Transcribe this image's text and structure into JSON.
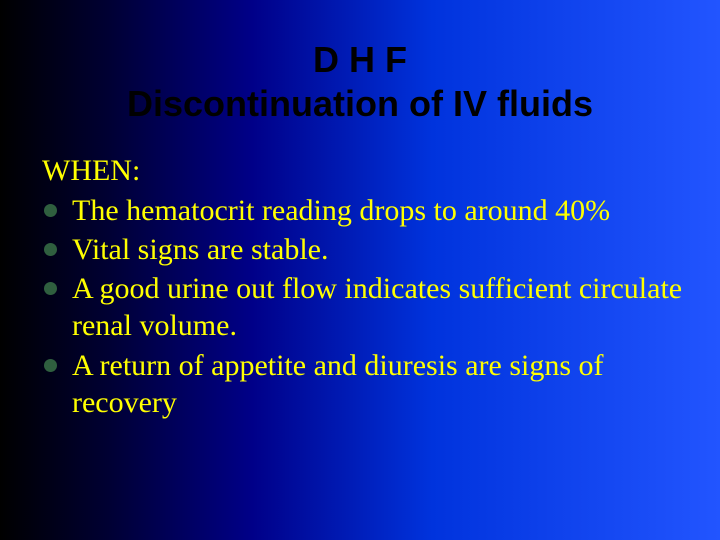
{
  "slide": {
    "title_line1": "D H F",
    "title_line2": "Discontinuation of IV fluids",
    "when_label": "WHEN:",
    "bullets": [
      "The hematocrit reading drops to around 40%",
      "Vital signs are stable.",
      "A good urine out flow indicates sufficient circulate renal volume.",
      "A return of appetite and diuresis are signs of recovery"
    ],
    "colors": {
      "title_color": "#000000",
      "body_text_color": "#ffff00",
      "bullet_color": "#2f5f3f",
      "gradient_start": "#000000",
      "gradient_end": "#2255ff"
    },
    "fonts": {
      "title_family": "Arial",
      "title_size_pt": 36,
      "title_weight": "bold",
      "body_family": "Times New Roman",
      "body_size_pt": 30
    }
  }
}
